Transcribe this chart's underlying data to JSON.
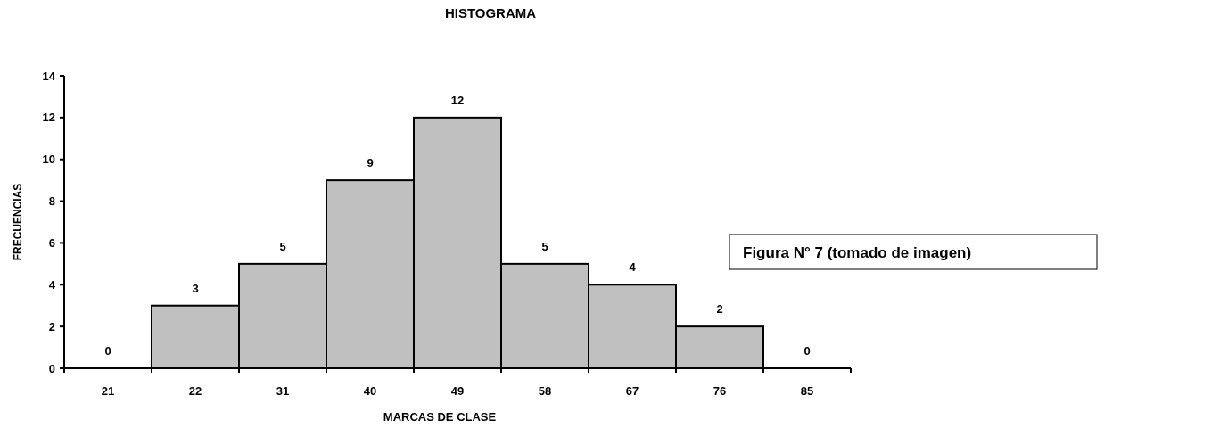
{
  "chart_data": {
    "type": "bar",
    "title": "HISTOGRAMA",
    "xlabel": "MARCAS DE CLASE",
    "ylabel": "FRECUENCIAS",
    "categories": [
      "21",
      "22",
      "31",
      "40",
      "49",
      "58",
      "67",
      "76",
      "85"
    ],
    "values": [
      0,
      3,
      5,
      9,
      12,
      5,
      4,
      2,
      0
    ],
    "color": "#c0c0c0",
    "ylim": [
      0,
      14
    ],
    "yticks": [
      0,
      2,
      4,
      6,
      8,
      10,
      12,
      14
    ],
    "grid": false,
    "data_labels": true,
    "annotations": [
      "Figura N° 7 (tomado de imagen)"
    ]
  }
}
